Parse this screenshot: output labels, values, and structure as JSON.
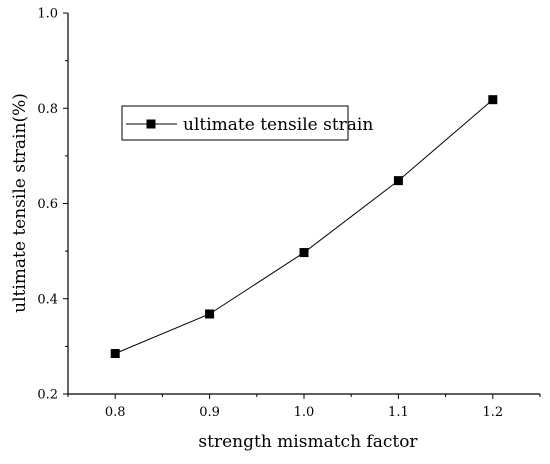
{
  "chart_data": {
    "type": "line",
    "title": "",
    "xlabel": "strength mismatch factor",
    "ylabel": "ultimate tensile strain(%)",
    "xlim": [
      0.75,
      1.25
    ],
    "ylim": [
      0.2,
      1.0
    ],
    "x_ticks": [
      "0.8",
      "0.9",
      "1.0",
      "1.1",
      "1.2"
    ],
    "y_ticks": [
      "0.2",
      "0.4",
      "0.6",
      "0.8",
      "1.0"
    ],
    "legend_position": "upper-left",
    "grid": false,
    "series": [
      {
        "name": "ultimate tensile strain",
        "marker": "square",
        "color": "#000000",
        "x": [
          0.8,
          0.9,
          1.0,
          1.1,
          1.2
        ],
        "y": [
          0.285,
          0.368,
          0.497,
          0.648,
          0.818
        ]
      }
    ]
  }
}
